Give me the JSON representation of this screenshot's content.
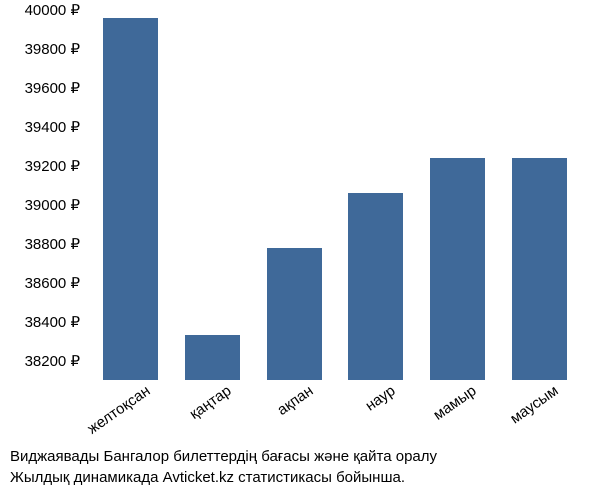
{
  "chart": {
    "type": "bar",
    "ylim": [
      38100,
      40000
    ],
    "yticks": [
      40000,
      39800,
      39600,
      39400,
      39200,
      39000,
      38800,
      38600,
      38400,
      38200
    ],
    "ytick_suffix": " ₽",
    "categories": [
      "желтоқсан",
      "қаңтар",
      "ақпан",
      "наур",
      "мамыр",
      "маусым"
    ],
    "values": [
      39960,
      38330,
      38780,
      39060,
      39240,
      39240
    ],
    "bar_color": "#3f6999",
    "background_color": "#ffffff",
    "label_fontsize": 15,
    "tick_fontsize": 15
  },
  "caption": {
    "line1": "Виджаявады Бангалор билеттердің бағасы және қайта оралу",
    "line2": "Жылдық динамикада Avticket.kz статистикасы бойынша."
  }
}
